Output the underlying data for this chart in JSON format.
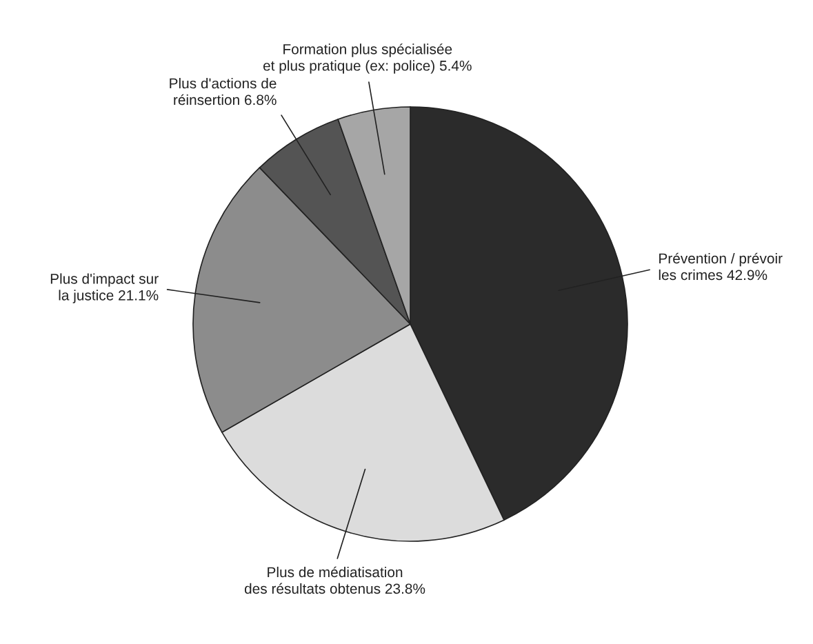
{
  "chart_data": {
    "type": "pie",
    "categories": [
      "Prévention / prévoir\nles crimes",
      "Plus de médiatisation\ndes résultats obtenus",
      "Plus d'impact sur\nla justice",
      "Plus d'actions de\nréinsertion",
      "Formation plus spécialisée\net plus pratique (ex: police)"
    ],
    "values": [
      42.9,
      23.8,
      21.1,
      6.8,
      5.4
    ],
    "value_labels": [
      "42.9%",
      "23.8%",
      "21.1%",
      "6.8%",
      "5.4%"
    ],
    "colors": [
      "#2b2b2b",
      "#dcdcdc",
      "#8c8c8c",
      "#545454",
      "#a6a6a6"
    ]
  }
}
